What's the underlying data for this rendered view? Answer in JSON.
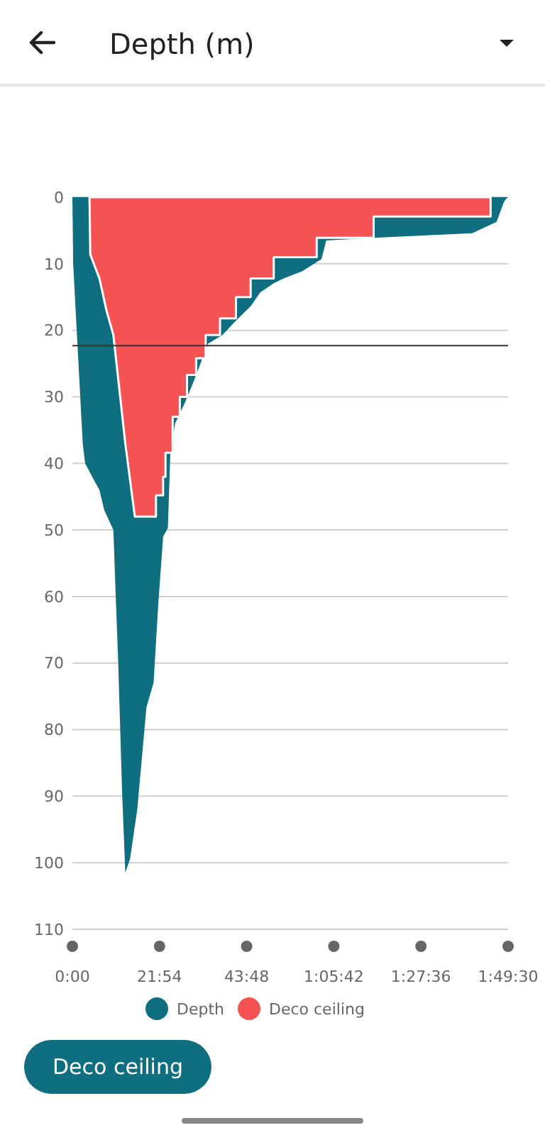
{
  "chart_data": {
    "type": "area",
    "title": "Depth (m)",
    "ylim": [
      110,
      0
    ],
    "yticks": [
      0,
      10,
      20,
      30,
      40,
      50,
      60,
      70,
      80,
      90,
      100,
      110
    ],
    "xlim": [
      0,
      109.5
    ],
    "xticks": [
      {
        "value": 0,
        "label": "0:00"
      },
      {
        "value": 21.9,
        "label": "21:54"
      },
      {
        "value": 43.8,
        "label": "43:48"
      },
      {
        "value": 65.7,
        "label": "1:05:42"
      },
      {
        "value": 87.6,
        "label": "1:27:36"
      },
      {
        "value": 109.5,
        "label": "1:49:30"
      }
    ],
    "grid": "y",
    "legend": "bottom",
    "annotations": [
      "Deco ceiling"
    ],
    "ref_lines": [
      {
        "axis": "y",
        "value": 22.3,
        "color": "#333333"
      }
    ],
    "series": [
      {
        "name": "Depth",
        "color": "#0f6e7f",
        "x": [
          0,
          0.2,
          2.6,
          3.2,
          5.6,
          6.8,
          8,
          10.3,
          10.9,
          11.5,
          12.5,
          13.3,
          14.5,
          16.3,
          18.6,
          19.6,
          20.4,
          21.6,
          22.8,
          24,
          24.6,
          25.8,
          28.2,
          30.6,
          34.1,
          37.7,
          41.2,
          44.8,
          47.2,
          50.7,
          53.1,
          57.8,
          62.6,
          63.8,
          75.6,
          100.5,
          104.1,
          106.6,
          108.4,
          109,
          109.5
        ],
        "values": [
          0,
          10,
          37,
          40,
          42.7,
          44,
          47,
          50,
          60,
          69.6,
          89.5,
          101.5,
          99.4,
          92,
          76.7,
          74.6,
          73,
          61,
          51,
          49.7,
          38.8,
          34,
          31,
          27.5,
          22,
          20.7,
          18.5,
          16.4,
          14.3,
          12.9,
          12.2,
          11.1,
          9.3,
          6.5,
          6.1,
          5.4,
          4.4,
          3.7,
          0.8,
          0.2,
          0
        ]
      },
      {
        "name": "Deco ceiling",
        "color": "#f55353",
        "x": [
          4.3,
          4.5,
          6.8,
          8.6,
          10.3,
          13.3,
          15,
          15.7,
          21,
          21,
          22.8,
          22.8,
          23.4,
          23.4,
          25.2,
          25.2,
          27,
          27,
          28.8,
          28.8,
          31.1,
          31.1,
          33.5,
          33.5,
          37.1,
          37.1,
          41.1,
          41.1,
          44.8,
          44.8,
          50.6,
          50.6,
          61.4,
          61.4,
          75.7,
          75.7,
          105.1,
          105.1
        ],
        "values": [
          0,
          8.6,
          12.2,
          17.1,
          20.7,
          37,
          44.8,
          48,
          48,
          44.8,
          44.8,
          42,
          42,
          38.4,
          38.4,
          33,
          33,
          30,
          30,
          26.7,
          26.7,
          24.2,
          24.2,
          20.7,
          20.7,
          18.2,
          18.2,
          15,
          15,
          12.2,
          12.2,
          9,
          9,
          6.1,
          6.1,
          2.9,
          2.9,
          0
        ]
      }
    ]
  }
}
